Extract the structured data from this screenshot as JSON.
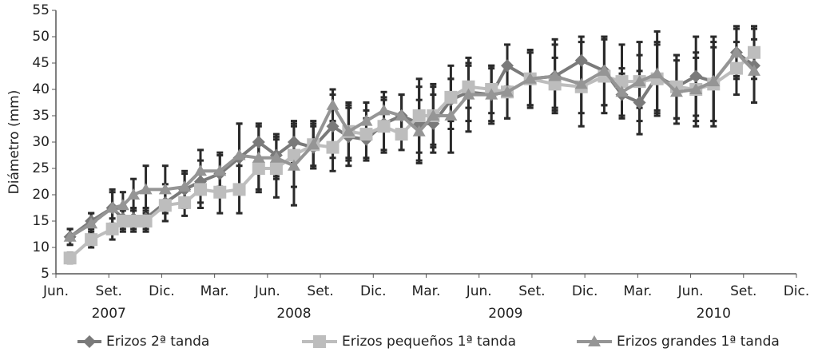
{
  "chart_data": {
    "type": "line",
    "y_label": "Diámetro (mm)",
    "ylim": [
      5,
      55
    ],
    "yticks": [
      5,
      10,
      15,
      20,
      25,
      30,
      35,
      40,
      45,
      50,
      55
    ],
    "xlim": [
      0,
      42
    ],
    "xticks": [
      {
        "value": 0,
        "label": "Jun."
      },
      {
        "value": 3,
        "label": "Set."
      },
      {
        "value": 6,
        "label": "Dic."
      },
      {
        "value": 9,
        "label": "Mar."
      },
      {
        "value": 12,
        "label": "Jun."
      },
      {
        "value": 15,
        "label": "Set."
      },
      {
        "value": 18,
        "label": "Dic."
      },
      {
        "value": 21,
        "label": "Mar."
      },
      {
        "value": 24,
        "label": "Jun."
      },
      {
        "value": 27,
        "label": "Set."
      },
      {
        "value": 30,
        "label": "Dic."
      },
      {
        "value": 33,
        "label": "Mar."
      },
      {
        "value": 36,
        "label": "Jun."
      },
      {
        "value": 39,
        "label": "Set."
      },
      {
        "value": 42,
        "label": "Dic."
      }
    ],
    "year_labels": [
      {
        "value": 3,
        "label": "2007"
      },
      {
        "value": 13.5,
        "label": "2008"
      },
      {
        "value": 25.5,
        "label": "2009"
      },
      {
        "value": 37.3,
        "label": "2010"
      }
    ],
    "x": [
      0.8,
      2,
      3.2,
      3.8,
      4.4,
      5.1,
      6.2,
      7.3,
      8.2,
      9.3,
      10.4,
      11.5,
      12.5,
      13.5,
      14.6,
      15.7,
      16.6,
      17.6,
      18.6,
      19.6,
      20.6,
      21.4,
      22.4,
      23.4,
      24.7,
      25.6,
      26.9,
      28.3,
      29.8,
      31.1,
      32.1,
      33.1,
      34.1,
      35.2,
      36.3,
      37.3,
      38.6,
      39.6
    ],
    "error_color": "#2a2a2a",
    "series": [
      {
        "name": "Erizos 2ª tanda",
        "color": "#7a7a7a",
        "marker": "diamond",
        "values": [
          12,
          15,
          17.5,
          15.5,
          15.5,
          15.5,
          18.5,
          21,
          22.5,
          24,
          27,
          30,
          27.5,
          30,
          29,
          33,
          31,
          30.5,
          33.5,
          35,
          33.5,
          33.5,
          38,
          39.5,
          39,
          44.5,
          42,
          42.5,
          45.5,
          43.5,
          39,
          37.5,
          42.5,
          40.5,
          42.5,
          41.5,
          47,
          44.5
        ],
        "errors": [
          1.5,
          1.5,
          3.5,
          2,
          2,
          2,
          3.5,
          3.5,
          4,
          4,
          6.5,
          3.5,
          4,
          4,
          4,
          6,
          5.5,
          4,
          5,
          4,
          7,
          5.5,
          4,
          5.5,
          5,
          4,
          5,
          6,
          4.5,
          6.5,
          4,
          6,
          6.5,
          6,
          7.5,
          7.5,
          5,
          7
        ]
      },
      {
        "name": "Erizos pequeños 1ª tanda",
        "color": "#bdbdbd",
        "marker": "square",
        "values": [
          8,
          11.5,
          13.5,
          15,
          15,
          15,
          18,
          18.5,
          21,
          20.5,
          21,
          25,
          25,
          27.5,
          29.5,
          29,
          32,
          31.5,
          33,
          31.5,
          35,
          35,
          38.5,
          40.5,
          40,
          39.5,
          42,
          41,
          40.5,
          42.5,
          41.5,
          41.5,
          42,
          40.5,
          40,
          41,
          44,
          47
        ],
        "errors": [
          1,
          1.5,
          2,
          2,
          2,
          2,
          3,
          2.5,
          3.5,
          4,
          4.5,
          4.5,
          5.5,
          6,
          4,
          4.5,
          5,
          4.5,
          5,
          3,
          7,
          5.5,
          6,
          4,
          4.5,
          5,
          5.5,
          5,
          5,
          7,
          7,
          7.5,
          6.5,
          6,
          6,
          7,
          5,
          5
        ]
      },
      {
        "name": "Erizos grandes 1ª tanda",
        "color": "#959595",
        "marker": "triangle",
        "values": [
          12,
          14.5,
          17.5,
          18,
          20,
          21,
          21,
          21.5,
          24.5,
          24.5,
          27.5,
          27,
          27,
          25.5,
          29.5,
          37,
          32,
          34,
          36,
          35,
          32,
          35,
          35,
          39,
          39,
          39.5,
          42,
          42.5,
          41,
          43.5,
          39.5,
          41.5,
          43,
          39.5,
          40,
          41.5,
          47,
          43.5
        ],
        "errors": [
          1.5,
          2,
          3,
          2.5,
          3,
          4.5,
          4.5,
          2.5,
          4,
          3,
          6,
          6,
          4,
          7.5,
          4.5,
          3,
          5.5,
          3.5,
          3.5,
          4,
          6,
          6,
          7,
          7,
          5.5,
          5,
          5,
          7,
          8,
          6.5,
          4.5,
          5,
          8,
          6,
          7,
          8.5,
          4.5,
          6
        ]
      }
    ],
    "legend": "bottom"
  }
}
